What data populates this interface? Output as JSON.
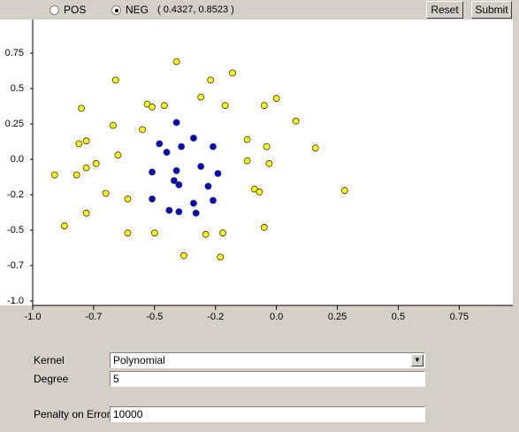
{
  "toolbar": {
    "options": [
      "POS",
      "NEG"
    ],
    "selected": "NEG",
    "coordinates": "( 0.4327, 0.8523 )",
    "buttons": [
      "Reset",
      "Submit"
    ]
  },
  "chart_data": {
    "type": "scatter",
    "xlim": [
      -1,
      0.97
    ],
    "ylim": [
      -1,
      1
    ],
    "xticks": [
      {
        "value": -1,
        "label": "-1.0"
      },
      {
        "value": -0.75,
        "label": "-0.7"
      },
      -0.5,
      {
        "value": -0.25,
        "label": "-0.2"
      },
      {
        "value": 0,
        "label": "0.0"
      },
      0.25,
      0.5,
      0.75
    ],
    "yticks": [
      0.75,
      0.5,
      0.25,
      {
        "value": 0,
        "label": "0.0"
      },
      {
        "value": -0.25,
        "label": "-0.2"
      },
      -0.5,
      {
        "value": -0.75,
        "label": "-0.7"
      },
      {
        "value": -1,
        "label": "-1.0"
      }
    ],
    "series": [
      {
        "color": "#ffff00",
        "x": [
          -0.41,
          -0.18,
          -0.66,
          -0.27,
          -0.8,
          -0.53,
          -0.51,
          -0.46,
          -0.31,
          -0.21,
          -0.05,
          0,
          0.08,
          -0.67,
          -0.55,
          -0.78,
          -0.81,
          -0.12,
          -0.04,
          0.16,
          -0.65,
          -0.74,
          -0.78,
          -0.12,
          -0.03,
          -0.91,
          -0.82,
          -0.09,
          -0.07,
          0.28,
          -0.7,
          -0.61,
          -0.78,
          -0.87,
          -0.61,
          -0.5,
          -0.29,
          -0.22,
          -0.05,
          -0.38,
          -0.23
        ],
        "y": [
          0.69,
          0.61,
          0.56,
          0.56,
          0.36,
          0.39,
          0.37,
          0.38,
          0.44,
          0.38,
          0.38,
          0.43,
          0.27,
          0.24,
          0.21,
          0.13,
          0.11,
          0.14,
          0.09,
          0.08,
          0.03,
          -0.03,
          -0.06,
          -0.01,
          -0.03,
          -0.11,
          -0.11,
          -0.21,
          -0.23,
          -0.22,
          -0.24,
          -0.28,
          -0.38,
          -0.47,
          -0.52,
          -0.52,
          -0.53,
          -0.52,
          -0.48,
          -0.68,
          -0.69
        ]
      },
      {
        "color": "#0000cc",
        "x": [
          -0.41,
          -0.34,
          -0.48,
          -0.39,
          -0.45,
          -0.26,
          -0.31,
          -0.51,
          -0.41,
          -0.24,
          -0.42,
          -0.4,
          -0.28,
          -0.51,
          -0.26,
          -0.34,
          -0.44,
          -0.4,
          -0.33
        ],
        "y": [
          0.26,
          0.15,
          0.11,
          0.09,
          0.05,
          0.09,
          -0.05,
          -0.09,
          -0.08,
          -0.1,
          -0.15,
          -0.18,
          -0.19,
          -0.28,
          -0.29,
          -0.31,
          -0.36,
          -0.37,
          -0.38
        ]
      }
    ]
  },
  "form": {
    "fields": [
      {
        "label": "Kernel",
        "value": "Polynomial"
      },
      {
        "label": "Degree",
        "value": "5"
      },
      {
        "label": "Penalty on Error",
        "value": "10000"
      }
    ]
  }
}
